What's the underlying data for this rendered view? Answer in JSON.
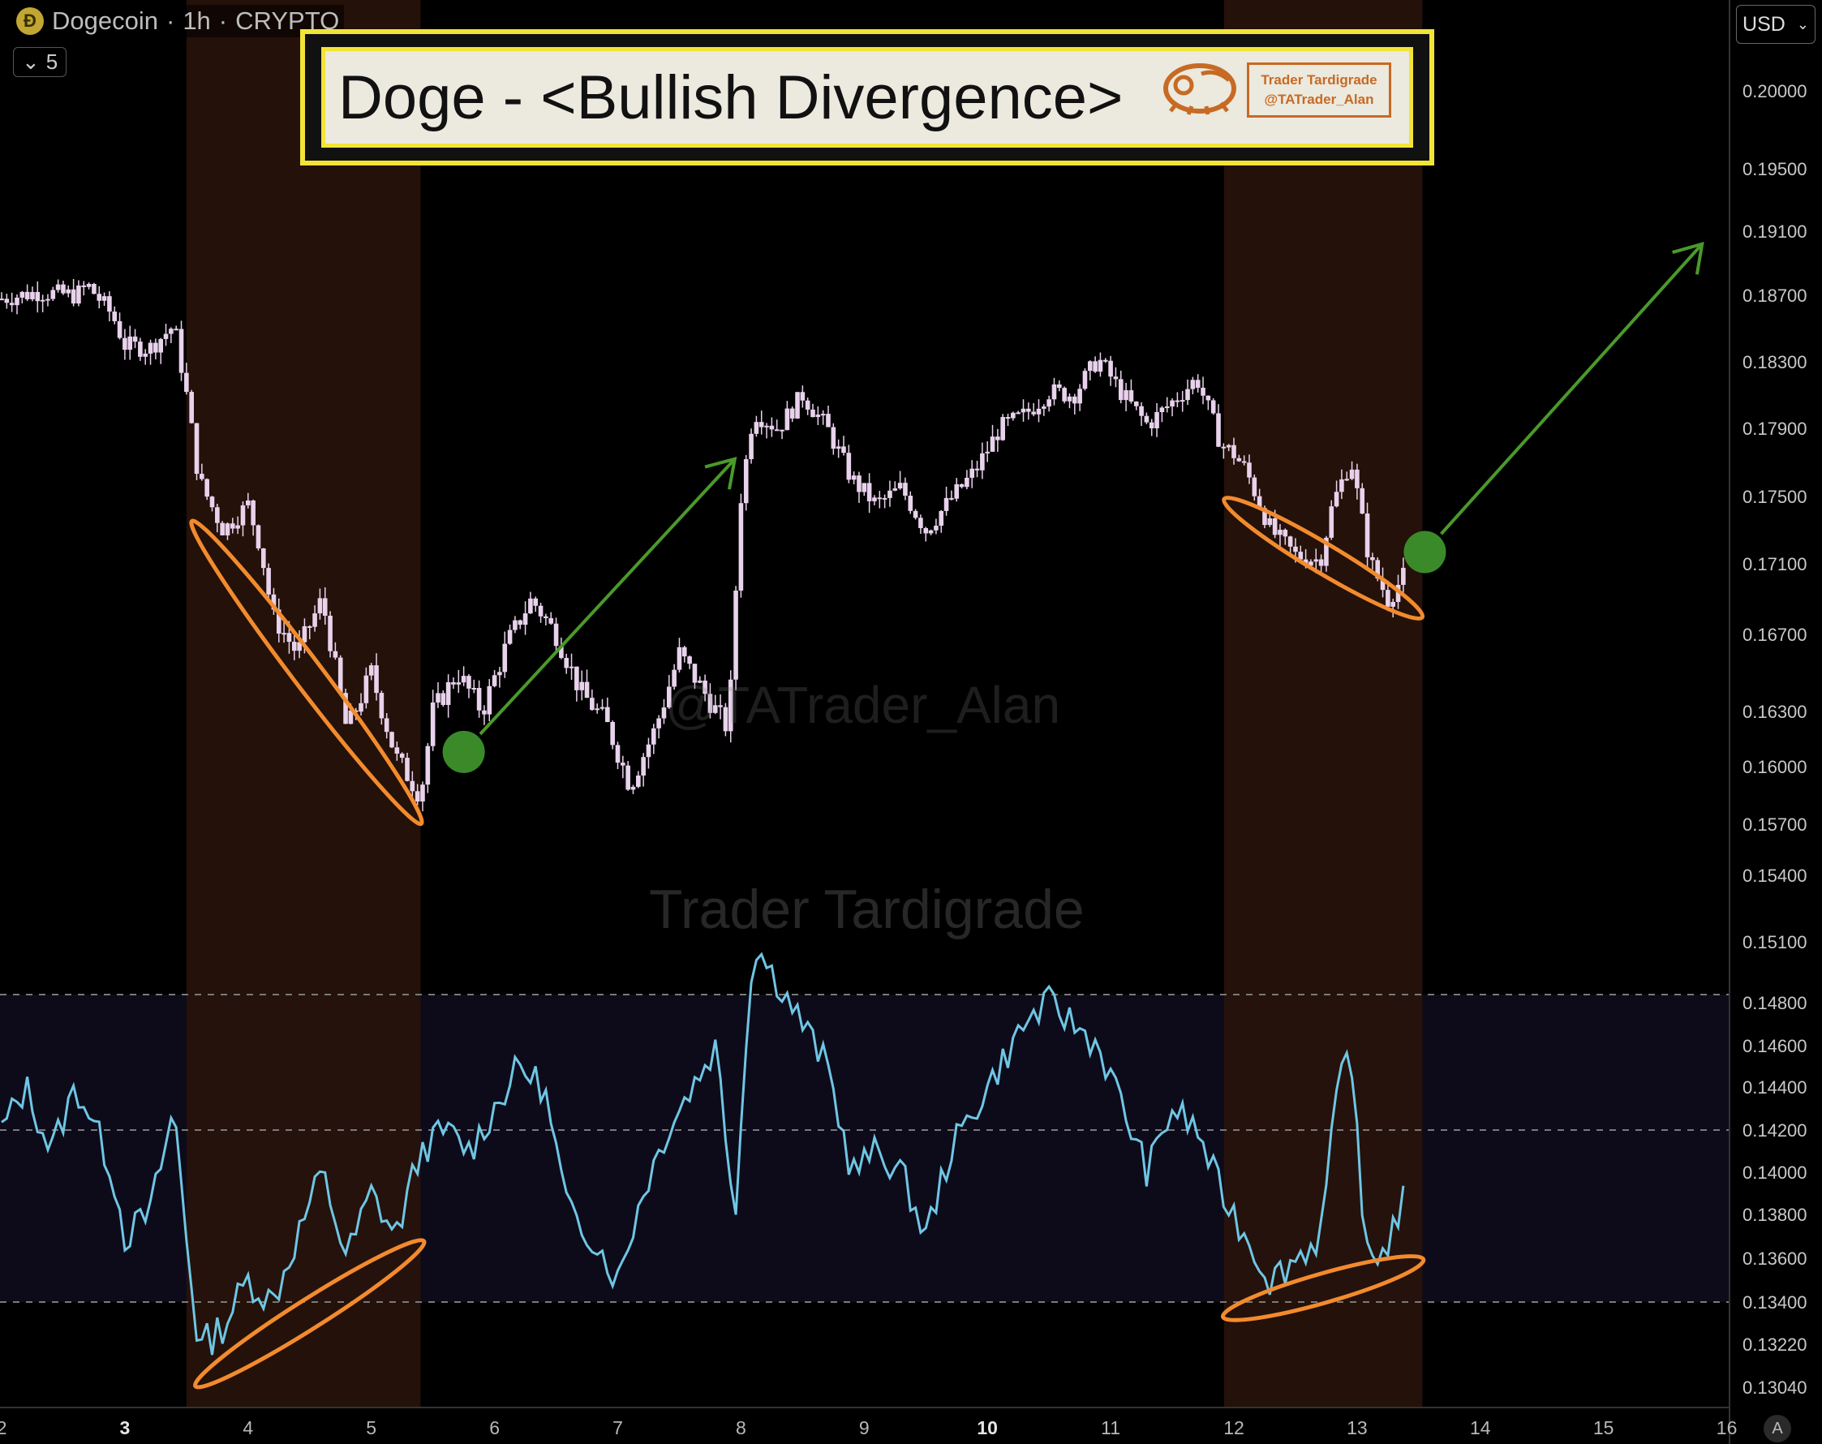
{
  "header": {
    "symbol": "Dogecoin",
    "interval": "1h",
    "exchange": "CRYPTO",
    "separator": "·",
    "coin_glyph": "Ð"
  },
  "interval_badge": {
    "label": "5"
  },
  "currency": {
    "label": "USD"
  },
  "banner": {
    "title": "Doge - <Bullish Divergence>",
    "badge_line1": "Trader Tardigrade",
    "badge_line2": "@TATrader_Alan"
  },
  "watermarks": {
    "handle": "@TATrader_Alan",
    "name": "Trader Tardigrade"
  },
  "auto_button": {
    "label": "A"
  },
  "colors": {
    "candle": "#e8d2ec",
    "oscillator": "#6fc6e4",
    "highlight": "#2a140a",
    "ellipse": "#f28b2e",
    "arrow": "#4a9a2a",
    "dot": "#3a8a2a",
    "panel": "#0d0b1a",
    "banner_border": "#f2e437"
  },
  "chart_data": {
    "type": "candlestick_with_oscillator",
    "y_axis_ticks": [
      "0.20000",
      "0.19500",
      "0.19100",
      "0.18700",
      "0.18300",
      "0.17900",
      "0.17500",
      "0.17100",
      "0.16700",
      "0.16300",
      "0.16000",
      "0.15700",
      "0.15400",
      "0.15100",
      "0.14800",
      "0.14600",
      "0.14400",
      "0.14200",
      "0.14000",
      "0.13800",
      "0.13600",
      "0.13400",
      "0.13220",
      "0.13040"
    ],
    "x_axis_ticks": [
      "2",
      "3",
      "4",
      "5",
      "6",
      "7",
      "8",
      "9",
      "10",
      "11",
      "12",
      "13",
      "14",
      "15",
      "16"
    ],
    "x_axis_bold_ticks": [
      "3",
      "10"
    ],
    "price_path": [
      [
        2.0,
        0.1868
      ],
      [
        2.3,
        0.1872
      ],
      [
        2.6,
        0.187
      ],
      [
        2.7,
        0.1876
      ],
      [
        2.9,
        0.1858
      ],
      [
        3.0,
        0.184
      ],
      [
        3.2,
        0.1838
      ],
      [
        3.4,
        0.1852
      ],
      [
        3.5,
        0.181
      ],
      [
        3.6,
        0.176
      ],
      [
        3.8,
        0.173
      ],
      [
        4.0,
        0.1745
      ],
      [
        4.1,
        0.172
      ],
      [
        4.2,
        0.168
      ],
      [
        4.4,
        0.166
      ],
      [
        4.6,
        0.169
      ],
      [
        4.8,
        0.162
      ],
      [
        5.0,
        0.165
      ],
      [
        5.2,
        0.1605
      ],
      [
        5.4,
        0.1585
      ],
      [
        5.5,
        0.163
      ],
      [
        5.7,
        0.165
      ],
      [
        5.9,
        0.163
      ],
      [
        6.1,
        0.1665
      ],
      [
        6.3,
        0.169
      ],
      [
        6.5,
        0.167
      ],
      [
        6.7,
        0.164
      ],
      [
        6.9,
        0.1625
      ],
      [
        7.1,
        0.159
      ],
      [
        7.3,
        0.162
      ],
      [
        7.5,
        0.166
      ],
      [
        7.7,
        0.164
      ],
      [
        7.9,
        0.162
      ],
      [
        8.0,
        0.175
      ],
      [
        8.1,
        0.18
      ],
      [
        8.3,
        0.179
      ],
      [
        8.5,
        0.181
      ],
      [
        8.7,
        0.179
      ],
      [
        8.9,
        0.176
      ],
      [
        9.1,
        0.1745
      ],
      [
        9.3,
        0.1755
      ],
      [
        9.5,
        0.173
      ],
      [
        9.7,
        0.1748
      ],
      [
        9.9,
        0.1765
      ],
      [
        10.1,
        0.179
      ],
      [
        10.3,
        0.1798
      ],
      [
        10.5,
        0.1812
      ],
      [
        10.7,
        0.181
      ],
      [
        10.9,
        0.1832
      ],
      [
        11.1,
        0.181
      ],
      [
        11.3,
        0.1792
      ],
      [
        11.5,
        0.1806
      ],
      [
        11.7,
        0.182
      ],
      [
        11.9,
        0.178
      ],
      [
        12.0,
        0.1775
      ],
      [
        12.1,
        0.1765
      ],
      [
        12.3,
        0.173
      ],
      [
        12.5,
        0.1715
      ],
      [
        12.7,
        0.1712
      ],
      [
        12.8,
        0.1745
      ],
      [
        12.95,
        0.1772
      ],
      [
        13.1,
        0.1712
      ],
      [
        13.25,
        0.169
      ],
      [
        13.4,
        0.1705
      ]
    ],
    "oscillator_path": [
      [
        2.0,
        0.142
      ],
      [
        2.2,
        0.144
      ],
      [
        2.4,
        0.141
      ],
      [
        2.6,
        0.144
      ],
      [
        2.7,
        0.143
      ],
      [
        2.9,
        0.14
      ],
      [
        3.0,
        0.137
      ],
      [
        3.2,
        0.138
      ],
      [
        3.4,
        0.143
      ],
      [
        3.5,
        0.137
      ],
      [
        3.6,
        0.132
      ],
      [
        3.8,
        0.133
      ],
      [
        4.0,
        0.135
      ],
      [
        4.2,
        0.134
      ],
      [
        4.4,
        0.137
      ],
      [
        4.6,
        0.14
      ],
      [
        4.8,
        0.136
      ],
      [
        5.0,
        0.139
      ],
      [
        5.2,
        0.137
      ],
      [
        5.4,
        0.141
      ],
      [
        5.6,
        0.142
      ],
      [
        5.8,
        0.141
      ],
      [
        6.0,
        0.143
      ],
      [
        6.2,
        0.145
      ],
      [
        6.4,
        0.144
      ],
      [
        6.6,
        0.138
      ],
      [
        6.8,
        0.137
      ],
      [
        7.0,
        0.135
      ],
      [
        7.2,
        0.139
      ],
      [
        7.4,
        0.142
      ],
      [
        7.6,
        0.144
      ],
      [
        7.8,
        0.146
      ],
      [
        7.95,
        0.138
      ],
      [
        8.1,
        0.151
      ],
      [
        8.3,
        0.149
      ],
      [
        8.5,
        0.147
      ],
      [
        8.7,
        0.145
      ],
      [
        8.9,
        0.14
      ],
      [
        9.1,
        0.141
      ],
      [
        9.3,
        0.14
      ],
      [
        9.5,
        0.137
      ],
      [
        9.7,
        0.141
      ],
      [
        9.9,
        0.143
      ],
      [
        10.1,
        0.145
      ],
      [
        10.3,
        0.147
      ],
      [
        10.5,
        0.148
      ],
      [
        10.7,
        0.147
      ],
      [
        10.9,
        0.146
      ],
      [
        11.1,
        0.143
      ],
      [
        11.3,
        0.14
      ],
      [
        11.5,
        0.143
      ],
      [
        11.7,
        0.142
      ],
      [
        11.9,
        0.139
      ],
      [
        12.0,
        0.138
      ],
      [
        12.1,
        0.137
      ],
      [
        12.3,
        0.135
      ],
      [
        12.5,
        0.136
      ],
      [
        12.7,
        0.137
      ],
      [
        12.85,
        0.144
      ],
      [
        12.95,
        0.146
      ],
      [
        13.05,
        0.137
      ],
      [
        13.2,
        0.136
      ],
      [
        13.4,
        0.139
      ]
    ],
    "highlight_ranges": [
      [
        3.5,
        5.4
      ],
      [
        11.92,
        13.53
      ]
    ],
    "divergence_ellipses": {
      "price": [
        {
          "from": [
            3.6,
            0.173
          ],
          "to": [
            5.35,
            0.1575
          ]
        },
        {
          "from": [
            12.0,
            0.1745
          ],
          "to": [
            13.45,
            0.1683
          ]
        }
      ],
      "oscillator": [
        {
          "from": [
            3.65,
            0.1307
          ],
          "to": [
            5.35,
            0.1365
          ]
        },
        {
          "from": [
            12.0,
            0.1335
          ],
          "to": [
            13.45,
            0.1358
          ]
        }
      ]
    },
    "signals": [
      {
        "x": 5.75,
        "y": 0.1608,
        "arrow_to": [
          7.95,
          0.1772
        ]
      },
      {
        "x": 13.55,
        "y": 0.1717,
        "arrow_to": [
          15.8,
          0.1902
        ]
      }
    ],
    "oscillator_levels": [
      0.1484,
      0.142,
      0.134
    ]
  }
}
